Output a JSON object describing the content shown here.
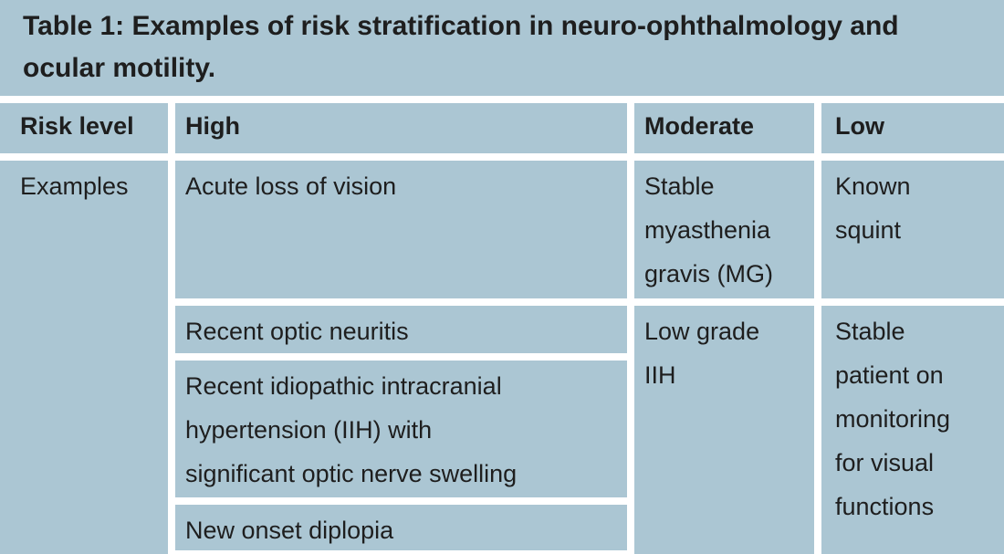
{
  "colors": {
    "background": "#abc6d3",
    "text": "#1e1e1e",
    "divider": "#ffffff"
  },
  "title": "Table 1: Examples of risk stratification in neuro-ophthalmology and ocular motility.",
  "table": {
    "headers": {
      "risk_level": "Risk level",
      "high": "High",
      "moderate": "Moderate",
      "low": "Low"
    },
    "row_label": "Examples",
    "high": [
      "Acute loss of vision",
      "Recent optic neuritis",
      "Recent idiopathic intracranial hypertension (IIH) with significant optic nerve swelling",
      "New onset diplopia"
    ],
    "moderate": [
      "Stable myasthenia gravis (MG)",
      "Low grade IIH"
    ],
    "low": [
      "Known squint",
      "Stable patient on monitoring for visual functions"
    ]
  }
}
